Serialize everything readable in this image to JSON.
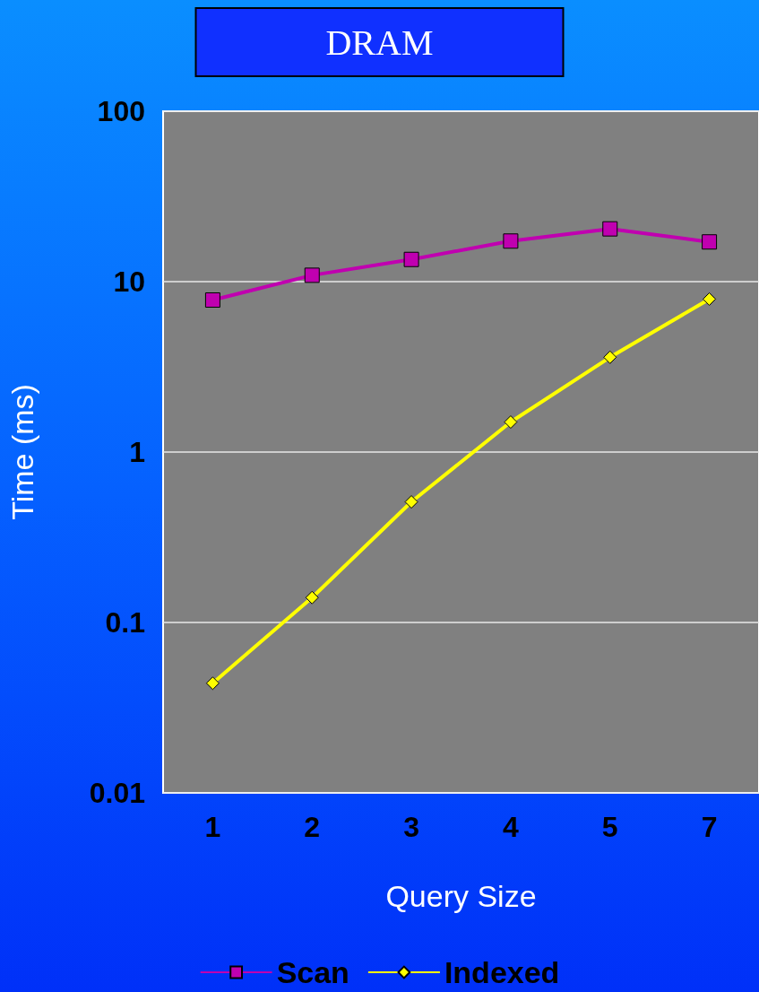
{
  "chart_data": {
    "type": "line",
    "title": "DRAM",
    "xlabel": "Query Size",
    "ylabel": "Time (ms)",
    "categories": [
      "1",
      "2",
      "3",
      "4",
      "5",
      "7"
    ],
    "series": [
      {
        "name": "Scan",
        "color": "#c000b0",
        "marker": "square",
        "values": [
          7.8,
          10.9,
          13.5,
          17.3,
          20.4,
          17.1
        ]
      },
      {
        "name": "Indexed",
        "color": "#ffff00",
        "marker": "diamond",
        "values": [
          0.044,
          0.14,
          0.51,
          1.5,
          3.6,
          7.9
        ]
      }
    ],
    "log": "y",
    "ylim": [
      0.01,
      100
    ],
    "yticks": [
      0.01,
      0.1,
      1,
      10,
      100
    ],
    "grid": "y",
    "legend": "bottom"
  }
}
